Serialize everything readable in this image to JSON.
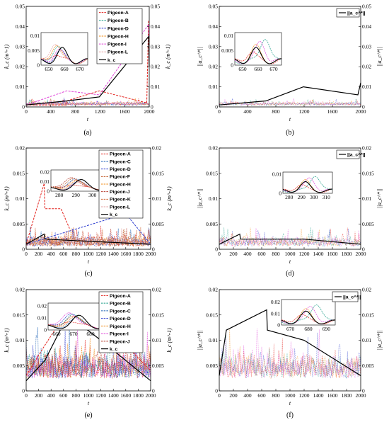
{
  "figure": {
    "panels": [
      {
        "caption": "(a)",
        "left_ylabel": "k_c (m^-1)",
        "right_ylabel": "k_c (m^-1)",
        "xlabel": "t",
        "y_ticks": [
          "0",
          "0.01",
          "0.02",
          "0.03",
          "0.04",
          "0.05"
        ],
        "x_ticks": [
          "0",
          "400",
          "800",
          "1200",
          "1600",
          "2000"
        ],
        "legend": [
          "Pigeon-A",
          "Pigeon-B",
          "Pigeon-D",
          "Pigeon-H",
          "Pigeon-I",
          "Pigeon-L",
          "k_c"
        ],
        "inset_x_ticks": [
          "650",
          "660",
          "670"
        ],
        "inset_y_ticks": [
          "0",
          "0.005",
          "0.01"
        ]
      },
      {
        "caption": "(b)",
        "left_ylabel": "||a_c^*||",
        "right_ylabel": "||a_c^*||",
        "xlabel": "t",
        "y_ticks": [
          "0",
          "0.01",
          "0.02",
          "0.03",
          "0.04",
          "0.05"
        ],
        "x_ticks": [
          "0",
          "400",
          "800",
          "1200",
          "1600",
          "2000"
        ],
        "legend": [
          "||a_c^*||"
        ],
        "inset_x_ticks": [
          "650",
          "660",
          "670"
        ],
        "inset_y_ticks": [
          "0",
          "0.005",
          "0.01"
        ]
      },
      {
        "caption": "(c)",
        "left_ylabel": "k_c (m^-1)",
        "right_ylabel": "k_c (m^-1)",
        "xlabel": "t",
        "y_ticks": [
          "0",
          "0.005",
          "0.01",
          "0.015",
          "0.02"
        ],
        "x_ticks": [
          "0",
          "200",
          "400",
          "600",
          "800",
          "1000",
          "1200",
          "1400",
          "1600",
          "1800",
          "2000"
        ],
        "legend": [
          "Pigeon-A",
          "Pigeon-C",
          "Pigeon-D",
          "Pigeon-F",
          "Pigeon-H",
          "Pigeon-J",
          "Pigeon-K",
          "Pigeon-L",
          "k_c"
        ],
        "inset_x_ticks": [
          "280",
          "290",
          "300",
          "310"
        ],
        "inset_y_ticks": [
          "0",
          "0.01",
          "0.02"
        ]
      },
      {
        "caption": "(d)",
        "left_ylabel": "||a_c^*||",
        "right_ylabel": "||a_c^*||",
        "xlabel": "t",
        "y_ticks": [
          "0",
          "0.005",
          "0.01",
          "0.015",
          "0.02"
        ],
        "x_ticks": [
          "0",
          "200",
          "400",
          "600",
          "800",
          "1000",
          "1200",
          "1400",
          "1600",
          "1800",
          "2000"
        ],
        "legend": [
          "||a_c^*||"
        ],
        "inset_x_ticks": [
          "280",
          "290",
          "300",
          "310"
        ],
        "inset_y_ticks": [
          "0",
          "0.01"
        ]
      },
      {
        "caption": "(e)",
        "left_ylabel": "k_c (m^-1)",
        "right_ylabel": "k_c (m^-1)",
        "xlabel": "t",
        "y_ticks": [
          "0",
          "0.005",
          "0.01",
          "0.015",
          "0.02"
        ],
        "x_ticks": [
          "0",
          "200",
          "400",
          "600",
          "800",
          "1000",
          "1200",
          "1400",
          "1600",
          "1800",
          "2000"
        ],
        "legend": [
          "Pigeon-A",
          "Pigeon-B",
          "Pigeon-C",
          "Pigeon-D",
          "Pigeon-H",
          "Pigeon-I",
          "Pigeon-J",
          "k_c"
        ],
        "inset_x_ticks": [
          "660",
          "670",
          "680",
          "690"
        ],
        "inset_y_ticks": [
          "0",
          "0.01",
          "0.02"
        ]
      },
      {
        "caption": "(f)",
        "left_ylabel": "||a_c^*||",
        "right_ylabel": "||a_c^*||",
        "xlabel": "t",
        "y_ticks": [
          "0",
          "0.005",
          "0.01",
          "0.015",
          "0.02"
        ],
        "x_ticks": [
          "0",
          "200",
          "400",
          "600",
          "800",
          "1000",
          "1200",
          "1400",
          "1600",
          "1800",
          "2000"
        ],
        "legend": [
          "||a_c^*||"
        ],
        "inset_x_ticks": [
          "670",
          "680",
          "690"
        ],
        "inset_y_ticks": [
          "0",
          "0.01",
          "0.02"
        ]
      }
    ]
  },
  "colors": {
    "Pigeon-A": "#e3201b",
    "Pigeon-B": "#1f9e89",
    "Pigeon-C": "#1a5fb4",
    "Pigeon-D": "#2f3fd0",
    "Pigeon-F": "#c05a28",
    "Pigeon-H": "#f08c1a",
    "Pigeon-I": "#e044d8",
    "Pigeon-J": "#b53a2b",
    "Pigeon-K": "#d06a3a",
    "Pigeon-L": "#e5a0a0",
    "kc": "#000000"
  },
  "chart_data": [
    {
      "type": "line",
      "panel": "(a)",
      "xlim": [
        0,
        2000
      ],
      "ylim": [
        0,
        0.05
      ],
      "series": [
        {
          "name": "Pigeon-A",
          "x": [
            0,
            650,
            660,
            1190,
            1960,
            1990,
            2000
          ],
          "y": [
            0.001,
            0.001,
            0.003,
            0.008,
            0.002,
            0.043,
            0.03
          ]
        },
        {
          "name": "Pigeon-I",
          "x": [
            0,
            660,
            1190,
            1990,
            2000
          ],
          "y": [
            0.001,
            0.008,
            0.006,
            0.041,
            0.02
          ]
        },
        {
          "name": "k_c",
          "x": [
            0,
            660,
            1190,
            1990,
            2000
          ],
          "y": [
            0.001,
            0.003,
            0.005,
            0.035,
            0.02
          ]
        }
      ]
    },
    {
      "type": "line",
      "panel": "(b)",
      "xlim": [
        0,
        2000
      ],
      "ylim": [
        0,
        0.05
      ],
      "series": [
        {
          "name": "||a_c^*||",
          "x": [
            0,
            660,
            1190,
            1960,
            2000
          ],
          "y": [
            0.001,
            0.003,
            0.01,
            0.006,
            0.012
          ]
        }
      ]
    },
    {
      "type": "line",
      "panel": "(c)",
      "xlim": [
        0,
        2000
      ],
      "ylim": [
        0,
        0.02
      ],
      "series": [
        {
          "name": "Pigeon-A",
          "x": [
            0,
            120,
            290,
            300,
            560,
            700
          ],
          "y": [
            0.001,
            0.006,
            0.013,
            0.008,
            0.008,
            0.004
          ]
        },
        {
          "name": "Pigeon-D",
          "x": [
            0,
            1600,
            2000
          ],
          "y": [
            0.001,
            0.007,
            0.001
          ]
        },
        {
          "name": "k_c",
          "x": [
            0,
            290,
            300,
            2000
          ],
          "y": [
            0.001,
            0.003,
            0.002,
            0.001
          ]
        }
      ]
    },
    {
      "type": "line",
      "panel": "(d)",
      "xlim": [
        0,
        2000
      ],
      "ylim": [
        0,
        0.02
      ],
      "series": [
        {
          "name": "||a_c^*||",
          "x": [
            0,
            290,
            300,
            1200,
            2000
          ],
          "y": [
            0.001,
            0.003,
            0.002,
            0.002,
            0.001
          ]
        }
      ]
    },
    {
      "type": "line",
      "panel": "(e)",
      "xlim": [
        0,
        2000
      ],
      "ylim": [
        0,
        0.02
      ],
      "series": [
        {
          "name": "Pigeon-A",
          "x": [
            0,
            300,
            670,
            1100,
            1200,
            2000
          ],
          "y": [
            0.003,
            0.009,
            0.016,
            0.012,
            0.014,
            0.004
          ]
        },
        {
          "name": "k_c",
          "x": [
            0,
            300,
            670,
            1200,
            2000
          ],
          "y": [
            0.002,
            0.006,
            0.015,
            0.01,
            0.002
          ]
        }
      ]
    },
    {
      "type": "line",
      "panel": "(f)",
      "xlim": [
        0,
        2000
      ],
      "ylim": [
        0,
        0.02
      ],
      "series": [
        {
          "name": "||a_c^*||",
          "x": [
            0,
            100,
            670,
            680,
            1200,
            2000
          ],
          "y": [
            0.003,
            0.012,
            0.016,
            0.012,
            0.01,
            0.003
          ]
        }
      ]
    }
  ]
}
